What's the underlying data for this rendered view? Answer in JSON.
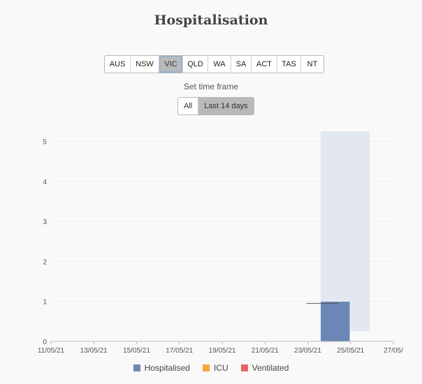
{
  "header": {
    "title": "Hospitalisation"
  },
  "state_tabs": [
    {
      "label": "AUS",
      "active": false
    },
    {
      "label": "NSW",
      "active": false
    },
    {
      "label": "VIC",
      "active": true
    },
    {
      "label": "QLD",
      "active": false
    },
    {
      "label": "WA",
      "active": false
    },
    {
      "label": "SA",
      "active": false
    },
    {
      "label": "ACT",
      "active": false
    },
    {
      "label": "TAS",
      "active": false
    },
    {
      "label": "NT",
      "active": false
    }
  ],
  "timeframe": {
    "label": "Set time frame",
    "options": [
      {
        "label": "All",
        "active": false
      },
      {
        "label": "Last 14 days",
        "active": true
      }
    ]
  },
  "legend": [
    {
      "label": "Hospitalised",
      "color": "#6a87b5"
    },
    {
      "label": "ICU",
      "color": "#f2a93b"
    },
    {
      "label": "Ventilated",
      "color": "#e26868"
    }
  ],
  "chart_data": {
    "type": "bar",
    "x_ticks": [
      "11/05/21",
      "13/05/21",
      "15/05/21",
      "17/05/21",
      "19/05/21",
      "21/05/21",
      "23/05/21",
      "25/05/21",
      "27/05/"
    ],
    "y_ticks": [
      0,
      1,
      2,
      3,
      4,
      5
    ],
    "ylim": [
      0,
      5.25
    ],
    "x": [
      "24/05/21",
      "25/05/21"
    ],
    "series": [
      {
        "name": "Hospitalised",
        "values": [
          1,
          1
        ],
        "color": "#6a87b5"
      }
    ],
    "highlight_band": {
      "from": "24/05/21",
      "to": "26/05/21",
      "color": "#e2e7f2"
    },
    "grid": true,
    "legend": "bottom"
  }
}
